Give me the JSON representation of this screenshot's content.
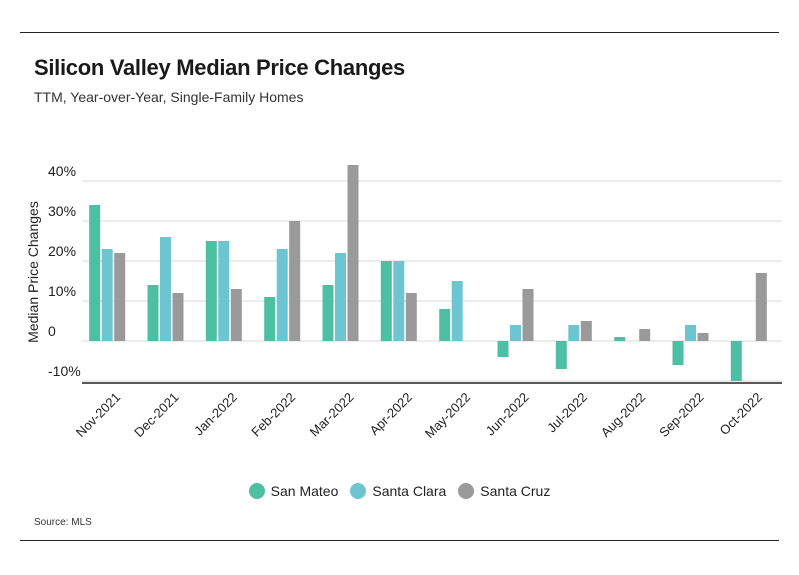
{
  "title": "Silicon Valley Median Price Changes",
  "subtitle": "TTM, Year-over-Year, Single-Family Homes",
  "source": "Source: MLS",
  "chart_data": {
    "type": "bar",
    "ylabel": "Median Price Changes",
    "ylim": [
      -10,
      45
    ],
    "yticks": [
      -10,
      0,
      10,
      20,
      30,
      40
    ],
    "ytick_labels": [
      "-10%",
      "0",
      "10%",
      "20%",
      "30%",
      "40%"
    ],
    "grid": true,
    "legend_position": "bottom",
    "categories": [
      "Nov-2021",
      "Dec-2021",
      "Jan-2022",
      "Feb-2022",
      "Mar-2022",
      "Apr-2022",
      "May-2022",
      "Jun-2022",
      "Jul-2022",
      "Aug-2022",
      "Sep-2022",
      "Oct-2022"
    ],
    "series": [
      {
        "name": "San Mateo",
        "color": "#4dbfa3",
        "values": [
          34,
          14,
          25,
          11,
          14,
          20,
          8,
          -4,
          -7,
          1,
          -6,
          -10
        ]
      },
      {
        "name": "Santa Clara",
        "color": "#6cc5d1",
        "values": [
          23,
          26,
          25,
          23,
          22,
          20,
          15,
          4,
          4,
          0,
          4,
          0
        ]
      },
      {
        "name": "Santa Cruz",
        "color": "#9a9a9a",
        "values": [
          22,
          12,
          13,
          30,
          44,
          12,
          0,
          13,
          5,
          3,
          2,
          17
        ]
      }
    ]
  }
}
